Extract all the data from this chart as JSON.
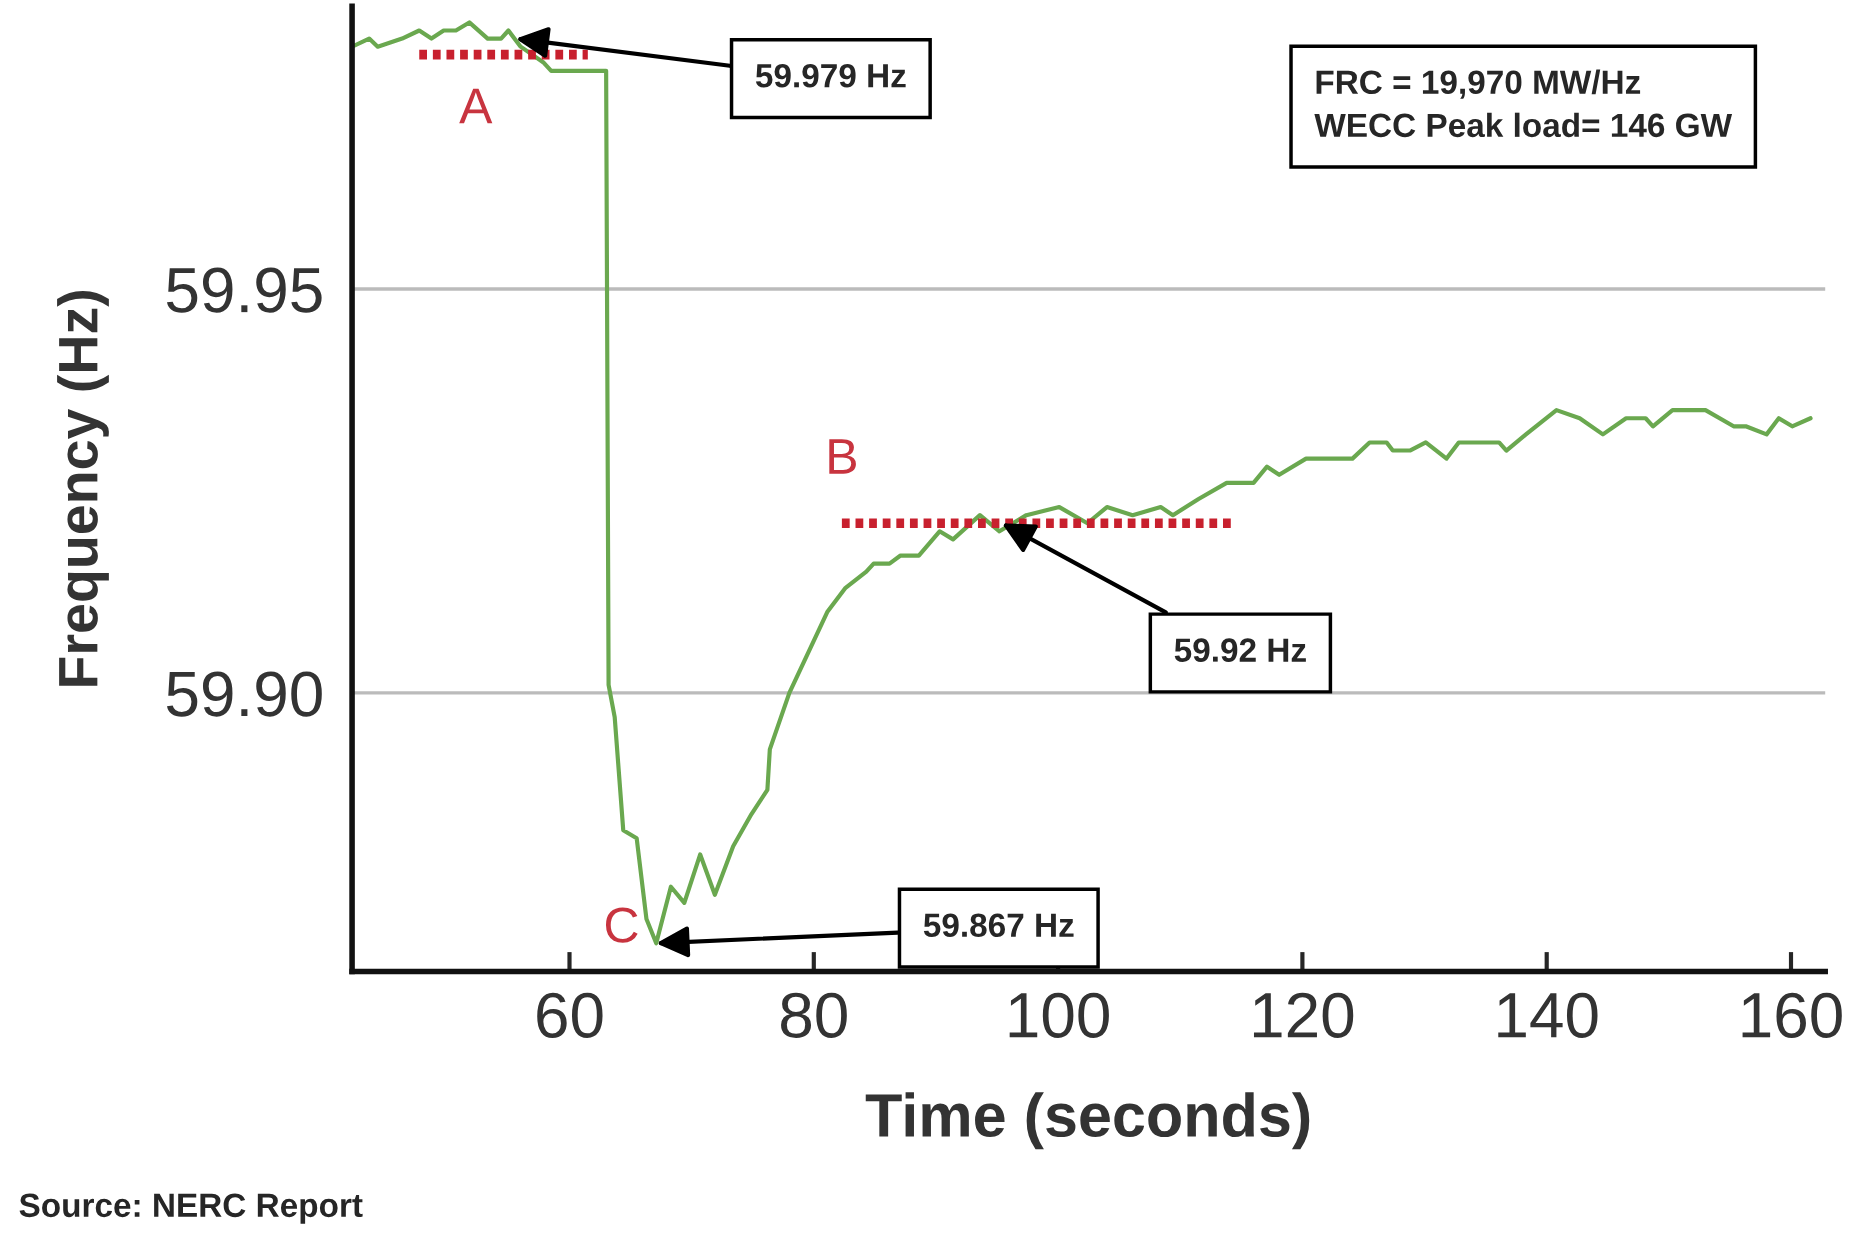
{
  "chart_data": {
    "type": "line",
    "xlabel": "Time (seconds)",
    "ylabel": "Frequency (Hz)",
    "xlim": [
      42.2,
      162.8
    ],
    "ylim": [
      59.8655,
      59.985
    ],
    "xticks": [
      60,
      80,
      100,
      120,
      140,
      160
    ],
    "yticks": [
      {
        "value": 59.9,
        "label": "59.90"
      },
      {
        "value": 59.95,
        "label": "59.95"
      }
    ],
    "grid": "y",
    "series": [
      {
        "color": "#6aa84f",
        "line_style": "solid",
        "x": [
          42.2,
          43.6,
          44.3,
          46.3,
          47.7,
          48.7,
          49.7,
          50.7,
          51.8,
          53.3,
          54.4,
          55.0,
          56.0,
          57.9,
          58.5,
          63.0,
          63.2,
          63.7,
          64.4,
          65.5,
          66.3,
          67.1,
          68.3,
          69.4,
          70.7,
          71.9,
          73.4,
          74.9,
          76.2,
          76.4,
          78.0,
          81.1,
          82.6,
          84.3,
          84.9,
          86.2,
          87.1,
          88.6,
          90.3,
          91.4,
          93.6,
          95.2,
          97.4,
          100.1,
          102.4,
          104.0,
          106.1,
          108.4,
          109.4,
          111.5,
          113.8,
          116.0,
          117.1,
          118.1,
          120.3,
          124.1,
          125.5,
          126.9,
          127.4,
          128.8,
          130.1,
          131.8,
          132.8,
          136.1,
          136.7,
          138.3,
          140.8,
          142.7,
          144.6,
          146.5,
          148.1,
          148.7,
          150.3,
          153.0,
          155.3,
          156.3,
          158.0,
          159.0,
          160.1,
          161.6
        ],
        "values": [
          59.98,
          59.981,
          59.98,
          59.981,
          59.982,
          59.981,
          59.982,
          59.982,
          59.983,
          59.981,
          59.981,
          59.982,
          59.98,
          59.978,
          59.977,
          59.977,
          59.901,
          59.897,
          59.883,
          59.882,
          59.872,
          59.869,
          59.876,
          59.874,
          59.88,
          59.875,
          59.881,
          59.885,
          59.888,
          59.893,
          59.9,
          59.91,
          59.913,
          59.915,
          59.916,
          59.916,
          59.917,
          59.917,
          59.92,
          59.919,
          59.922,
          59.92,
          59.922,
          59.923,
          59.921,
          59.923,
          59.922,
          59.923,
          59.922,
          59.924,
          59.926,
          59.926,
          59.928,
          59.927,
          59.929,
          59.929,
          59.931,
          59.931,
          59.93,
          59.93,
          59.931,
          59.929,
          59.931,
          59.931,
          59.93,
          59.932,
          59.935,
          59.934,
          59.932,
          59.934,
          59.934,
          59.933,
          59.935,
          59.935,
          59.933,
          59.933,
          59.932,
          59.934,
          59.933,
          59.934
        ]
      },
      {
        "color": "#c8202e",
        "line_style": "dotted",
        "x": [
          47.7,
          61.5
        ],
        "values": [
          59.979,
          59.979
        ]
      },
      {
        "color": "#c8202e",
        "line_style": "dotted",
        "x": [
          82.3,
          114.4
        ],
        "values": [
          59.921,
          59.921
        ]
      }
    ],
    "annotations": [
      {
        "text": "59.979 Hz",
        "x": 55.6,
        "y": 59.981
      },
      {
        "text": "59.92 Hz",
        "x": 95.4,
        "y": 59.921
      },
      {
        "text": "59.867 Hz",
        "x": 67.1,
        "y": 59.869
      },
      {
        "text": "A",
        "x": 54.6,
        "y": 59.979
      },
      {
        "text": "B",
        "x": 82.3,
        "y": 59.921
      },
      {
        "text": "C",
        "x": 67.1,
        "y": 59.869
      },
      "FRC = 19,970 MW/Hz\nWECC Peak load= 146 GW",
      "Source: NERC Report"
    ]
  }
}
